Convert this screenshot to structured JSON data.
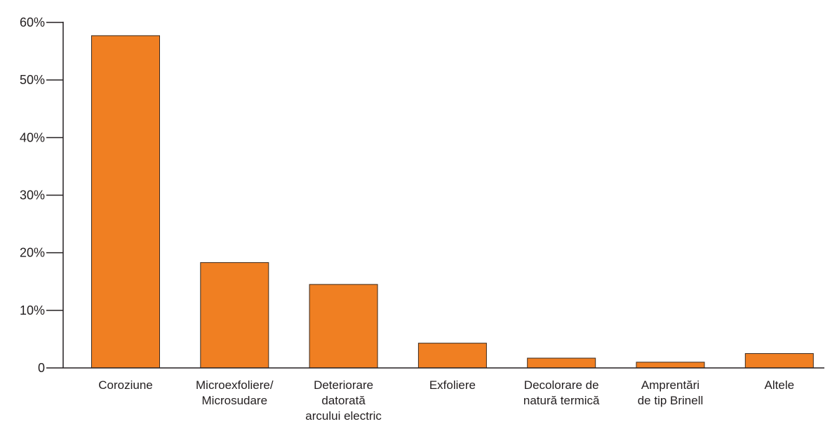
{
  "chart_data": {
    "type": "bar",
    "categories": [
      [
        "Coroziune"
      ],
      [
        "Microexfoliere/",
        "Microsudare"
      ],
      [
        "Deteriorare",
        "datorată",
        "arcului electric"
      ],
      [
        "Exfoliere"
      ],
      [
        "Decolorare de",
        "natură termică"
      ],
      [
        "Amprentări",
        "de tip Brinell"
      ],
      [
        "Altele"
      ]
    ],
    "values": [
      57.7,
      18.3,
      14.5,
      4.3,
      1.7,
      1.0,
      2.5
    ],
    "ylim": [
      0,
      60
    ],
    "yticks": [
      0,
      10,
      20,
      30,
      40,
      50,
      60
    ],
    "ytick_labels": [
      "0",
      "10%",
      "20%",
      "30%",
      "40%",
      "50%",
      "60%"
    ],
    "grid": false,
    "colors": {
      "bar": "#f07f22",
      "bar_stroke": "#3a2a1e",
      "axis": "#231f20"
    }
  }
}
